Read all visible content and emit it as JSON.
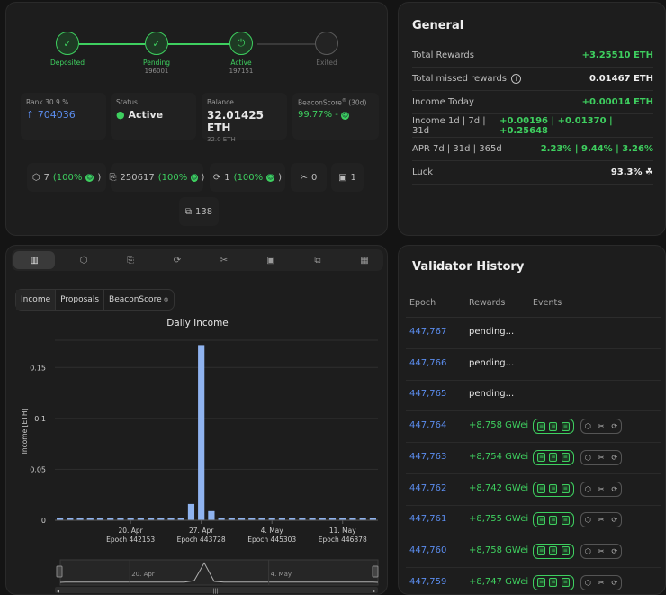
{
  "overview": {
    "steps": [
      {
        "label": "Deposited",
        "sub": "",
        "state": "done"
      },
      {
        "label": "Pending",
        "sub": "196001",
        "state": "done"
      },
      {
        "label": "Active",
        "sub": "197151",
        "state": "active"
      },
      {
        "label": "Exited",
        "sub": "",
        "state": "off"
      }
    ],
    "rank": {
      "label": "Rank 30.9 %",
      "value": "704036"
    },
    "status": {
      "label": "Status",
      "value": "Active"
    },
    "balance": {
      "label": "Balance",
      "value": "32.01425 ETH",
      "sub": "32.0 ETH"
    },
    "beaconscore": {
      "label": "BeaconScore",
      "label_sup": "®",
      "label_suffix": " (30d)",
      "value": "99.77% -"
    },
    "counters": [
      {
        "icon": "cube-icon",
        "value": "7",
        "pct": "(100%"
      },
      {
        "icon": "sync-committee-icon",
        "value": "250617",
        "pct": "(100%"
      },
      {
        "icon": "refresh-icon",
        "value": "1",
        "pct": "(100%"
      },
      {
        "icon": "slashing-icon",
        "value": "0",
        "pct": ""
      },
      {
        "icon": "deposit-icon",
        "value": "1",
        "pct": ""
      },
      {
        "icon": "withdrawal-icon",
        "value": "138",
        "pct": ""
      }
    ]
  },
  "general": {
    "title": "General",
    "rows": [
      {
        "label": "Total Rewards",
        "value": "+3.25510 ETH",
        "color": "green",
        "info": false
      },
      {
        "label": "Total missed rewards",
        "value": "0.01467 ETH",
        "color": "white",
        "info": true
      },
      {
        "label": "Income Today",
        "value": "+0.00014 ETH",
        "color": "green",
        "info": false
      },
      {
        "label": "Income 1d | 7d | 31d",
        "value": "+0.00196 | +0.01370 | +0.25648",
        "color": "green",
        "info": false
      },
      {
        "label": "APR 7d | 31d | 365d",
        "value": "2.23% | 9.44% | 3.26%",
        "color": "green",
        "info": false
      },
      {
        "label": "Luck",
        "value": "93.3%",
        "color": "white",
        "info": false
      }
    ]
  },
  "chart_tabs": [
    "chart-icon",
    "cube-icon",
    "sync-committee-icon",
    "refresh-icon",
    "slashing-icon",
    "deposit-icon",
    "withdrawal-icon",
    "qr-icon"
  ],
  "chart_subtabs": [
    "Income",
    "Proposals",
    "BeaconScore"
  ],
  "chart_data": {
    "type": "bar",
    "title": "Daily Income",
    "ylabel": "Income [ETH]",
    "ylim": [
      0,
      0.175
    ],
    "yticks": [
      0,
      0.05,
      0.1,
      0.15
    ],
    "ytick_labels": [
      "0",
      "0.05",
      "0.1",
      "0.15"
    ],
    "xtick_labels": [
      {
        "index": 7,
        "date": "20. Apr",
        "epoch": "Epoch 442153"
      },
      {
        "index": 14,
        "date": "27. Apr",
        "epoch": "Epoch 443728"
      },
      {
        "index": 21,
        "date": "4. May",
        "epoch": "Epoch 445303"
      },
      {
        "index": 28,
        "date": "11. May",
        "epoch": "Epoch 446878"
      }
    ],
    "values": [
      0.002,
      0.002,
      0.002,
      0.002,
      0.002,
      0.002,
      0.002,
      0.002,
      0.002,
      0.002,
      0.002,
      0.002,
      0.002,
      0.016,
      0.172,
      0.009,
      0.002,
      0.002,
      0.002,
      0.002,
      0.002,
      0.002,
      0.002,
      0.002,
      0.002,
      0.002,
      0.002,
      0.002,
      0.002,
      0.002,
      0.002,
      0.002
    ],
    "navigator_labels": [
      "20. Apr",
      "4. May"
    ]
  },
  "history": {
    "title": "Validator History",
    "headers": {
      "epoch": "Epoch",
      "rewards": "Rewards",
      "events": "Events"
    },
    "rows": [
      {
        "epoch": "447,767",
        "reward": "pending...",
        "events": false
      },
      {
        "epoch": "447,766",
        "reward": "pending...",
        "events": false
      },
      {
        "epoch": "447,765",
        "reward": "pending...",
        "events": false
      },
      {
        "epoch": "447,764",
        "reward": "+8,758 GWei",
        "events": true
      },
      {
        "epoch": "447,763",
        "reward": "+8,754 GWei",
        "events": true
      },
      {
        "epoch": "447,762",
        "reward": "+8,742 GWei",
        "events": true
      },
      {
        "epoch": "447,761",
        "reward": "+8,755 GWei",
        "events": true
      },
      {
        "epoch": "447,760",
        "reward": "+8,758 GWei",
        "events": true
      },
      {
        "epoch": "447,759",
        "reward": "+8,747 GWei",
        "events": true
      }
    ]
  },
  "colors": {
    "accent_green": "#3ecf5f",
    "link_blue": "#5b8def",
    "bar_blue": "#8fb3ef"
  }
}
